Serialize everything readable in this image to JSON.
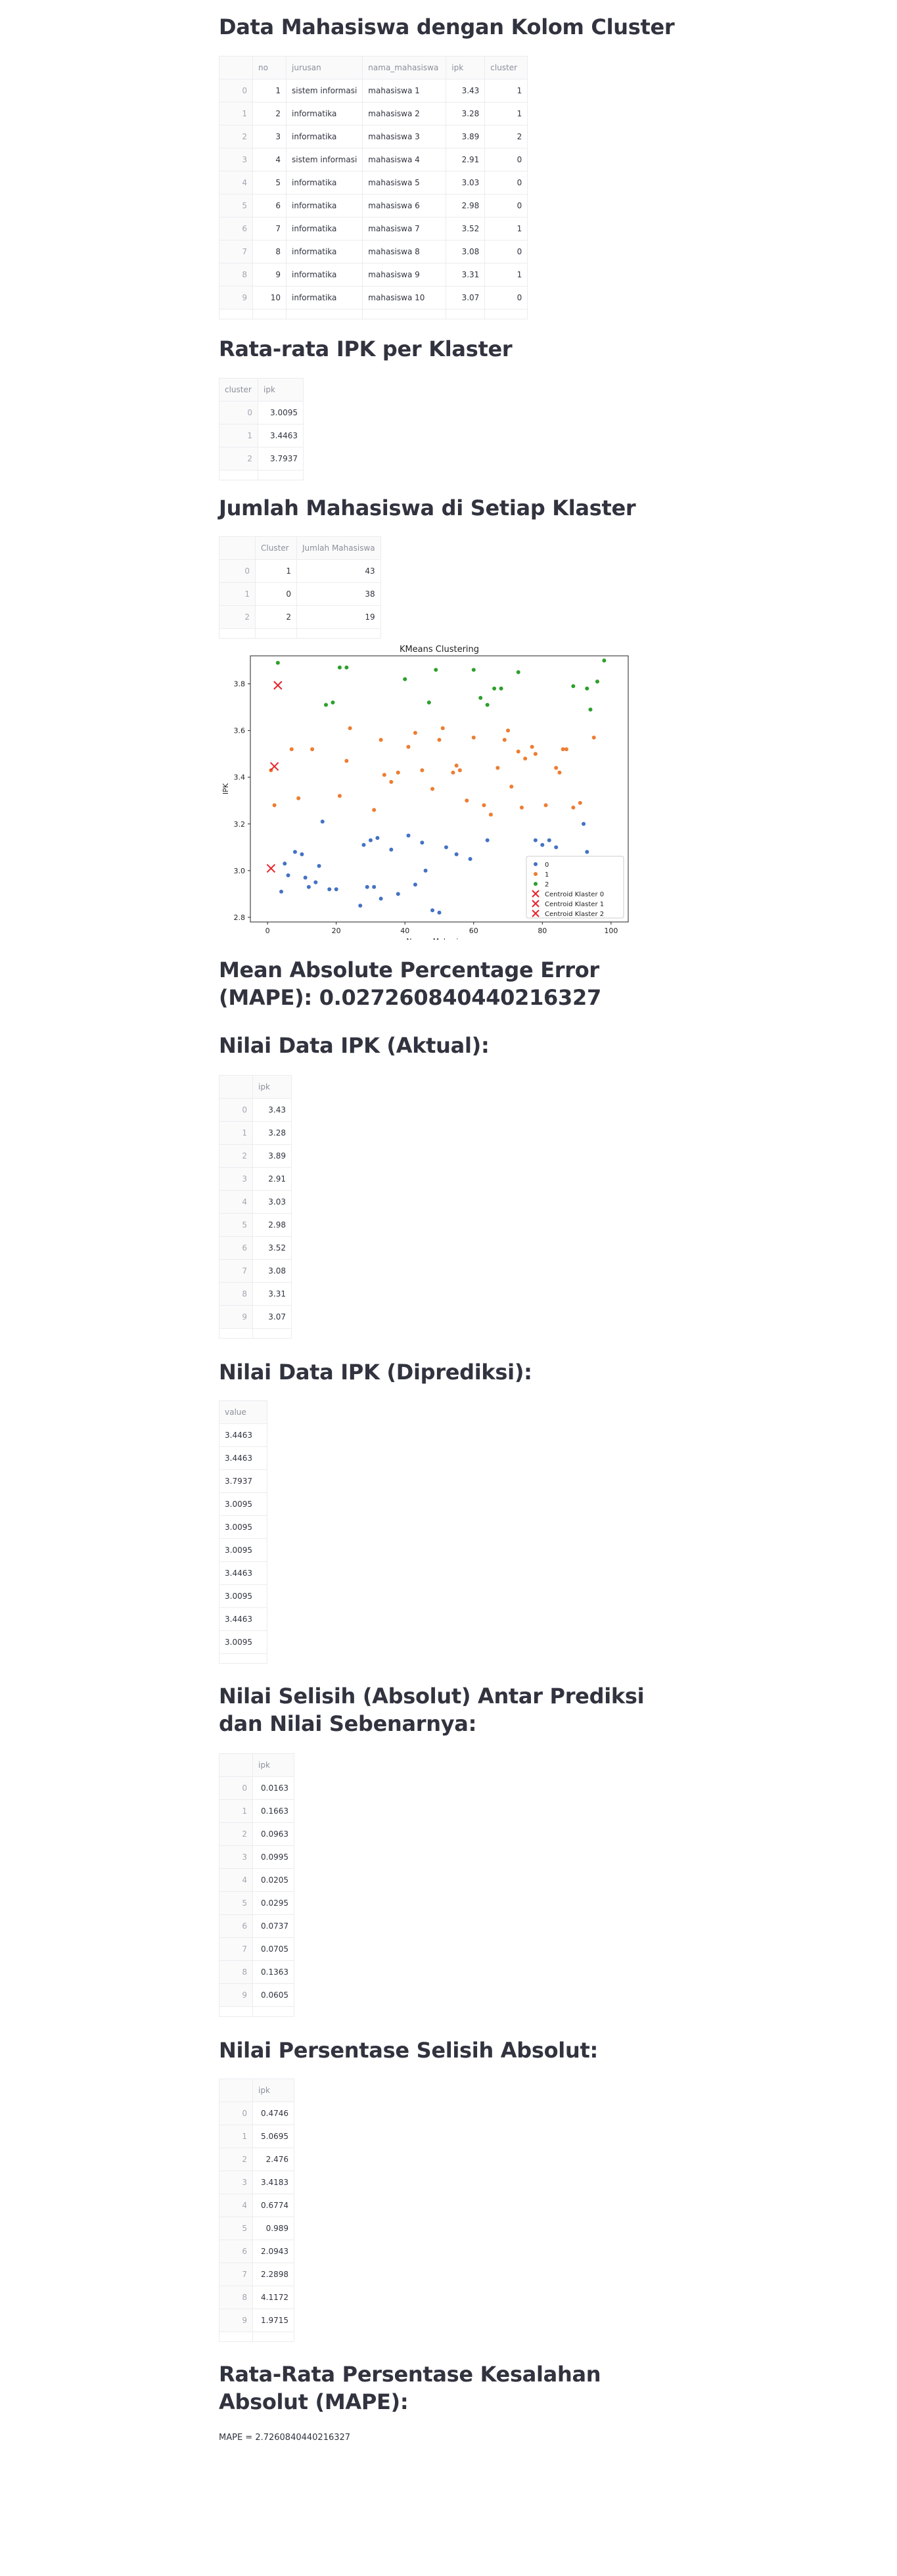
{
  "sections": {
    "s1": {
      "title": "Data Mahasiswa dengan Kolom Cluster"
    },
    "s2": {
      "title": "Rata-rata IPK per Klaster"
    },
    "s3": {
      "title": "Jumlah Mahasiswa di Setiap Klaster"
    },
    "s4": {
      "title": "Mean Absolute Percentage Error (MAPE): 0.027260840440216327"
    },
    "s5": {
      "title": "Nilai Data IPK (Aktual):"
    },
    "s6": {
      "title": "Nilai Data IPK (Diprediksi):"
    },
    "s7": {
      "title": "Nilai Selisih (Absolut) Antar Prediksi dan Nilai Sebenarnya:"
    },
    "s8": {
      "title": "Nilai Persentase Selisih Absolut:"
    },
    "s9": {
      "title": "Rata-Rata Persentase Kesalahan Absolut (MAPE):",
      "text": "MAPE = 2.7260840440216327"
    }
  },
  "table1": {
    "columns": [
      "",
      "no",
      "jurusan",
      "nama_mahasiswa",
      "ipk",
      "cluster"
    ],
    "rows": [
      [
        "0",
        "1",
        "sistem informasi",
        "mahasiswa 1",
        "3.43",
        "1"
      ],
      [
        "1",
        "2",
        "informatika",
        "mahasiswa 2",
        "3.28",
        "1"
      ],
      [
        "2",
        "3",
        "informatika",
        "mahasiswa 3",
        "3.89",
        "2"
      ],
      [
        "3",
        "4",
        "sistem informasi",
        "mahasiswa 4",
        "2.91",
        "0"
      ],
      [
        "4",
        "5",
        "informatika",
        "mahasiswa 5",
        "3.03",
        "0"
      ],
      [
        "5",
        "6",
        "informatika",
        "mahasiswa 6",
        "2.98",
        "0"
      ],
      [
        "6",
        "7",
        "informatika",
        "mahasiswa 7",
        "3.52",
        "1"
      ],
      [
        "7",
        "8",
        "informatika",
        "mahasiswa 8",
        "3.08",
        "0"
      ],
      [
        "8",
        "9",
        "informatika",
        "mahasiswa 9",
        "3.31",
        "1"
      ],
      [
        "9",
        "10",
        "informatika",
        "mahasiswa 10",
        "3.07",
        "0"
      ]
    ]
  },
  "table2": {
    "columns": [
      "cluster",
      "ipk"
    ],
    "rows": [
      [
        "0",
        "3.0095"
      ],
      [
        "1",
        "3.4463"
      ],
      [
        "2",
        "3.7937"
      ]
    ]
  },
  "table3": {
    "columns": [
      "",
      "Cluster",
      "Jumlah Mahasiswa"
    ],
    "rows": [
      [
        "0",
        "1",
        "43"
      ],
      [
        "1",
        "0",
        "38"
      ],
      [
        "2",
        "2",
        "19"
      ]
    ]
  },
  "table5": {
    "columns": [
      "",
      "ipk"
    ],
    "rows": [
      [
        "0",
        "3.43"
      ],
      [
        "1",
        "3.28"
      ],
      [
        "2",
        "3.89"
      ],
      [
        "3",
        "2.91"
      ],
      [
        "4",
        "3.03"
      ],
      [
        "5",
        "2.98"
      ],
      [
        "6",
        "3.52"
      ],
      [
        "7",
        "3.08"
      ],
      [
        "8",
        "3.31"
      ],
      [
        "9",
        "3.07"
      ]
    ]
  },
  "table6": {
    "columns": [
      "value"
    ],
    "rows": [
      [
        "3.4463"
      ],
      [
        "3.4463"
      ],
      [
        "3.7937"
      ],
      [
        "3.0095"
      ],
      [
        "3.0095"
      ],
      [
        "3.0095"
      ],
      [
        "3.4463"
      ],
      [
        "3.0095"
      ],
      [
        "3.4463"
      ],
      [
        "3.0095"
      ]
    ]
  },
  "table7": {
    "columns": [
      "",
      "ipk"
    ],
    "rows": [
      [
        "0",
        "0.0163"
      ],
      [
        "1",
        "0.1663"
      ],
      [
        "2",
        "0.0963"
      ],
      [
        "3",
        "0.0995"
      ],
      [
        "4",
        "0.0205"
      ],
      [
        "5",
        "0.0295"
      ],
      [
        "6",
        "0.0737"
      ],
      [
        "7",
        "0.0705"
      ],
      [
        "8",
        "0.1363"
      ],
      [
        "9",
        "0.0605"
      ]
    ]
  },
  "table8": {
    "columns": [
      "",
      "ipk"
    ],
    "rows": [
      [
        "0",
        "0.4746"
      ],
      [
        "1",
        "5.0695"
      ],
      [
        "2",
        "2.476"
      ],
      [
        "3",
        "3.4183"
      ],
      [
        "4",
        "0.6774"
      ],
      [
        "5",
        "0.989"
      ],
      [
        "6",
        "2.0943"
      ],
      [
        "7",
        "2.2898"
      ],
      [
        "8",
        "4.1172"
      ],
      [
        "9",
        "1.9715"
      ]
    ]
  },
  "chart_data": {
    "type": "scatter",
    "title": "KMeans Clustering",
    "xlabel": "Nomor Mahasiswa",
    "ylabel": "IPK",
    "xlim": [
      -5,
      105
    ],
    "ylim": [
      2.78,
      3.92
    ],
    "xticks": [
      0,
      20,
      40,
      60,
      80,
      100
    ],
    "yticks": [
      2.8,
      3.0,
      3.2,
      3.4,
      3.6,
      3.8
    ],
    "legend_position": "bottom-right",
    "grid": false,
    "series": [
      {
        "name": "0",
        "color": "#4472c4",
        "marker": "dot",
        "points": [
          [
            4,
            2.91
          ],
          [
            5,
            3.03
          ],
          [
            6,
            2.98
          ],
          [
            8,
            3.08
          ],
          [
            10,
            3.07
          ],
          [
            11,
            2.97
          ],
          [
            12,
            2.93
          ],
          [
            14,
            2.95
          ],
          [
            15,
            3.02
          ],
          [
            16,
            3.21
          ],
          [
            18,
            2.92
          ],
          [
            20,
            2.92
          ],
          [
            27,
            2.85
          ],
          [
            28,
            3.11
          ],
          [
            29,
            2.93
          ],
          [
            30,
            3.13
          ],
          [
            31,
            2.93
          ],
          [
            32,
            3.14
          ],
          [
            33,
            2.88
          ],
          [
            36,
            3.09
          ],
          [
            38,
            2.9
          ],
          [
            41,
            3.15
          ],
          [
            43,
            2.94
          ],
          [
            45,
            3.12
          ],
          [
            46,
            3.0
          ],
          [
            48,
            2.83
          ],
          [
            50,
            2.82
          ],
          [
            52,
            3.1
          ],
          [
            55,
            3.07
          ],
          [
            59,
            3.05
          ],
          [
            64,
            3.13
          ],
          [
            77,
            2.83
          ],
          [
            78,
            3.13
          ],
          [
            80,
            3.11
          ],
          [
            82,
            3.13
          ],
          [
            84,
            3.1
          ],
          [
            92,
            3.2
          ],
          [
            93,
            3.08
          ]
        ]
      },
      {
        "name": "1",
        "color": "#ed7d31",
        "marker": "dot",
        "points": [
          [
            1,
            3.43
          ],
          [
            2,
            3.28
          ],
          [
            7,
            3.52
          ],
          [
            9,
            3.31
          ],
          [
            13,
            3.52
          ],
          [
            21,
            3.32
          ],
          [
            23,
            3.47
          ],
          [
            24,
            3.61
          ],
          [
            31,
            3.26
          ],
          [
            33,
            3.56
          ],
          [
            34,
            3.41
          ],
          [
            36,
            3.38
          ],
          [
            38,
            3.42
          ],
          [
            41,
            3.53
          ],
          [
            43,
            3.59
          ],
          [
            45,
            3.43
          ],
          [
            48,
            3.35
          ],
          [
            50,
            3.56
          ],
          [
            51,
            3.61
          ],
          [
            54,
            3.42
          ],
          [
            55,
            3.45
          ],
          [
            56,
            3.43
          ],
          [
            58,
            3.3
          ],
          [
            60,
            3.57
          ],
          [
            63,
            3.28
          ],
          [
            65,
            3.24
          ],
          [
            67,
            3.44
          ],
          [
            69,
            3.56
          ],
          [
            70,
            3.6
          ],
          [
            71,
            3.36
          ],
          [
            73,
            3.51
          ],
          [
            74,
            3.27
          ],
          [
            75,
            3.48
          ],
          [
            77,
            3.53
          ],
          [
            78,
            3.5
          ],
          [
            81,
            3.28
          ],
          [
            84,
            3.44
          ],
          [
            85,
            3.42
          ],
          [
            86,
            3.52
          ],
          [
            87,
            3.52
          ],
          [
            89,
            3.27
          ],
          [
            91,
            3.29
          ],
          [
            95,
            3.57
          ]
        ]
      },
      {
        "name": "2",
        "color": "#2ca02c",
        "marker": "dot",
        "points": [
          [
            3,
            3.89
          ],
          [
            17,
            3.71
          ],
          [
            19,
            3.72
          ],
          [
            21,
            3.87
          ],
          [
            23,
            3.87
          ],
          [
            40,
            3.82
          ],
          [
            47,
            3.72
          ],
          [
            49,
            3.86
          ],
          [
            60,
            3.86
          ],
          [
            62,
            3.74
          ],
          [
            64,
            3.71
          ],
          [
            66,
            3.78
          ],
          [
            68,
            3.78
          ],
          [
            73,
            3.85
          ],
          [
            89,
            3.79
          ],
          [
            93,
            3.78
          ],
          [
            94,
            3.69
          ],
          [
            96,
            3.81
          ],
          [
            98,
            3.9
          ]
        ]
      },
      {
        "name": "Centroid Klaster 0",
        "color": "#e8232b",
        "marker": "x",
        "points": [
          [
            1,
            3.0095
          ]
        ]
      },
      {
        "name": "Centroid Klaster 1",
        "color": "#e8232b",
        "marker": "x",
        "points": [
          [
            2,
            3.4463
          ]
        ]
      },
      {
        "name": "Centroid Klaster 2",
        "color": "#e8232b",
        "marker": "x",
        "points": [
          [
            3,
            3.7937
          ]
        ]
      }
    ]
  }
}
